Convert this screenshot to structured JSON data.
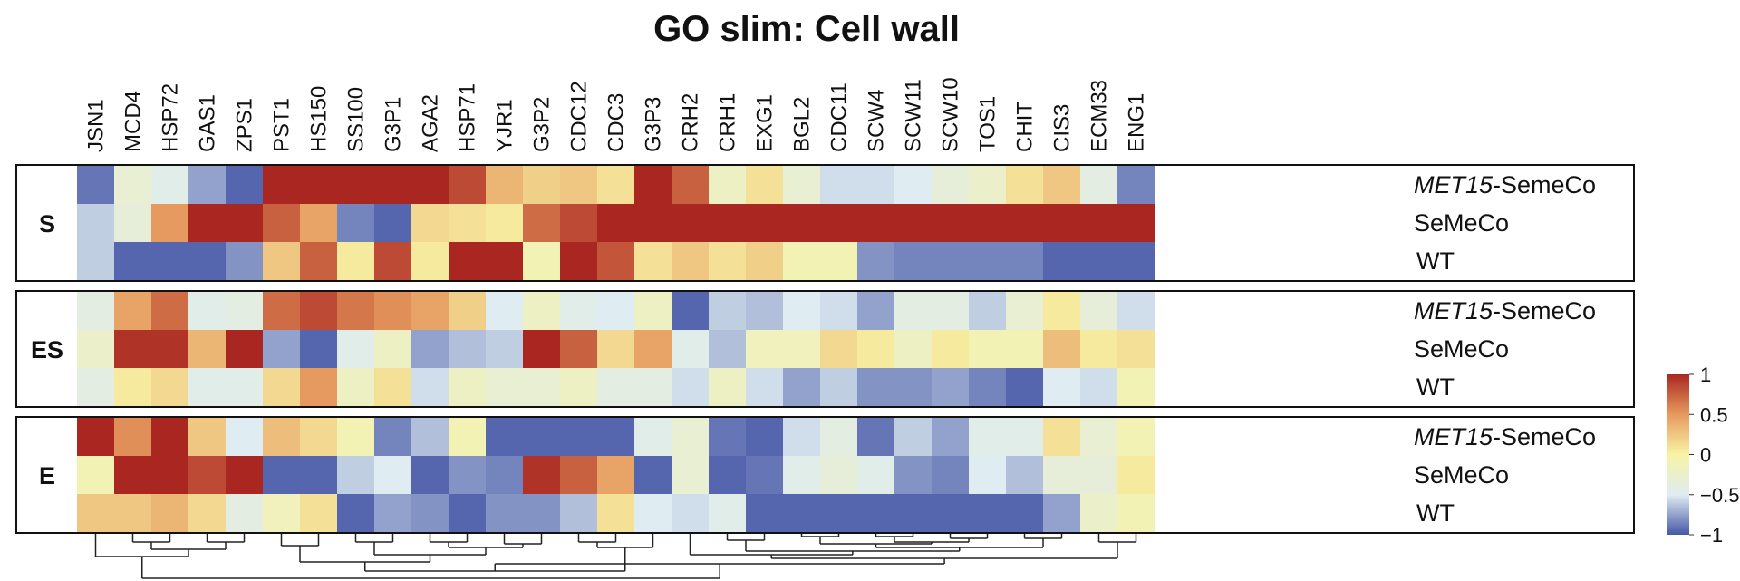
{
  "chart_data": {
    "type": "heatmap",
    "title": "GO slim: Cell wall",
    "columns": [
      "JSN1",
      "MCD4",
      "HSP72",
      "GAS1",
      "ZPS1",
      "PST1",
      "HS150",
      "SS100",
      "G3P1",
      "AGA2",
      "HSP71",
      "YJR1",
      "G3P2",
      "CDC12",
      "CDC3",
      "G3P3",
      "CRH2",
      "CRH1",
      "EXG1",
      "BGL2",
      "CDC11",
      "SCW4",
      "SCW11",
      "SCW10",
      "TOS1",
      "CHIT",
      "CIS3",
      "ECM33",
      "ENG1"
    ],
    "row_labels": [
      {
        "prefix": "MET15",
        "suffix": "-SemeCo"
      },
      {
        "prefix": "",
        "suffix": "SeMeCo"
      },
      {
        "prefix": "",
        "suffix": "WT"
      }
    ],
    "groups": [
      {
        "name": "S",
        "values": [
          [
            -0.9,
            -0.3,
            -0.45,
            -0.75,
            -0.95,
            1,
            1,
            1,
            1,
            1,
            0.85,
            0.35,
            0.2,
            0.25,
            0.1,
            1,
            0.75,
            -0.2,
            0.1,
            -0.3,
            -0.55,
            -0.55,
            -0.5,
            -0.35,
            -0.25,
            0.1,
            0.25,
            -0.4,
            -0.85
          ],
          [
            -0.6,
            -0.35,
            0.5,
            1,
            1,
            0.75,
            0.45,
            -0.85,
            -0.95,
            0.15,
            0.1,
            0.05,
            0.7,
            0.85,
            1,
            1,
            1,
            1,
            1,
            1,
            1,
            1,
            1,
            1,
            1,
            1,
            1,
            1,
            1
          ],
          [
            -0.6,
            -0.95,
            -0.95,
            -0.95,
            -0.8,
            0.25,
            0.75,
            0.05,
            0.85,
            0.05,
            1,
            1,
            -0.1,
            1,
            0.8,
            0.1,
            0.25,
            0.1,
            0.2,
            -0.1,
            -0.1,
            -0.8,
            -0.85,
            -0.85,
            -0.85,
            -0.85,
            -0.95,
            -0.95,
            -0.95
          ]
        ]
      },
      {
        "name": "ES",
        "values": [
          [
            -0.4,
            0.45,
            0.7,
            -0.45,
            -0.4,
            0.7,
            0.85,
            0.65,
            0.55,
            0.45,
            0.2,
            -0.5,
            -0.2,
            -0.45,
            -0.5,
            -0.2,
            -0.95,
            -0.6,
            -0.65,
            -0.5,
            -0.55,
            -0.75,
            -0.4,
            -0.4,
            -0.6,
            -0.3,
            0.05,
            -0.35,
            -0.55
          ],
          [
            -0.25,
            0.95,
            0.95,
            0.35,
            1,
            -0.75,
            -0.95,
            -0.45,
            -0.2,
            -0.75,
            -0.65,
            -0.6,
            1,
            0.75,
            0.15,
            0.45,
            -0.45,
            -0.65,
            -0.15,
            -0.15,
            0.15,
            0.05,
            -0.2,
            0.05,
            -0.1,
            -0.1,
            0.3,
            0.05,
            0.1
          ],
          [
            -0.4,
            0.05,
            0.15,
            -0.45,
            -0.45,
            0.15,
            0.5,
            -0.2,
            0.1,
            -0.55,
            -0.2,
            -0.3,
            -0.3,
            -0.2,
            -0.4,
            -0.4,
            -0.55,
            -0.2,
            -0.55,
            -0.75,
            -0.6,
            -0.8,
            -0.8,
            -0.75,
            -0.85,
            -0.95,
            -0.5,
            -0.55,
            -0.1
          ]
        ]
      },
      {
        "name": "E",
        "values": [
          [
            1,
            0.55,
            1,
            0.25,
            -0.5,
            0.3,
            0.15,
            -0.1,
            -0.85,
            -0.65,
            -0.1,
            -0.95,
            -0.95,
            -0.95,
            -0.95,
            -0.45,
            -0.3,
            -0.9,
            -0.95,
            -0.55,
            -0.4,
            -0.9,
            -0.6,
            -0.75,
            -0.45,
            -0.45,
            0.1,
            -0.3,
            -0.1
          ],
          [
            -0.1,
            1,
            1,
            0.85,
            1,
            -0.95,
            -0.95,
            -0.6,
            -0.5,
            -0.95,
            -0.8,
            -0.85,
            0.95,
            0.75,
            0.45,
            -0.95,
            -0.3,
            -0.95,
            -0.9,
            -0.45,
            -0.35,
            -0.45,
            -0.8,
            -0.85,
            -0.5,
            -0.65,
            -0.35,
            -0.35,
            0.05
          ],
          [
            0.25,
            0.25,
            0.35,
            0.15,
            -0.4,
            -0.15,
            0.1,
            -0.95,
            -0.75,
            -0.8,
            -0.95,
            -0.8,
            -0.8,
            -0.65,
            0.1,
            -0.5,
            -0.55,
            -0.45,
            -0.95,
            -0.95,
            -0.95,
            -0.95,
            -0.95,
            -0.95,
            -0.95,
            -0.95,
            -0.75,
            -0.25,
            -0.1
          ]
        ]
      }
    ],
    "color_scale": {
      "domain": [
        -1,
        -0.5,
        0,
        0.5,
        1
      ],
      "colors": [
        "#4657a6",
        "#dfecf1",
        "#f7f3a5",
        "#e69a5f",
        "#aa2721"
      ],
      "tick_labels": [
        "1",
        "0.5",
        "0",
        "−0.5",
        "−1"
      ]
    }
  }
}
